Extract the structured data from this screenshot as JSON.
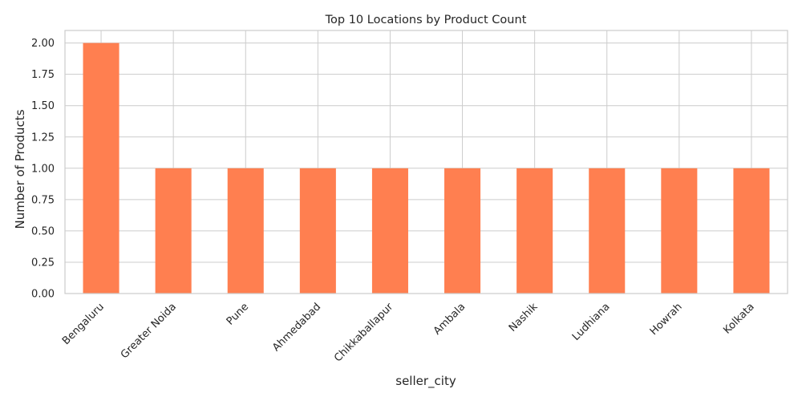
{
  "chart_data": {
    "type": "bar",
    "title": "Top 10 Locations by Product Count",
    "xlabel": "seller_city",
    "ylabel": "Number of Products",
    "categories": [
      "Bengaluru",
      "Greater Noida",
      "Pune",
      "Ahmedabad",
      "Chikkaballapur",
      "Ambala",
      "Nashik",
      "Ludhiana",
      "Howrah",
      "Kolkata"
    ],
    "values": [
      2,
      1,
      1,
      1,
      1,
      1,
      1,
      1,
      1,
      1
    ],
    "ylim": [
      0,
      2.1
    ],
    "yticks": [
      "0.00",
      "0.25",
      "0.50",
      "0.75",
      "1.00",
      "1.25",
      "1.50",
      "1.75",
      "2.00"
    ],
    "grid": true,
    "legend": "none",
    "colors": {
      "bar": "#ff7f50",
      "grid": "#cccccc",
      "axes_edge": "#cccccc",
      "text": "#262626"
    }
  }
}
